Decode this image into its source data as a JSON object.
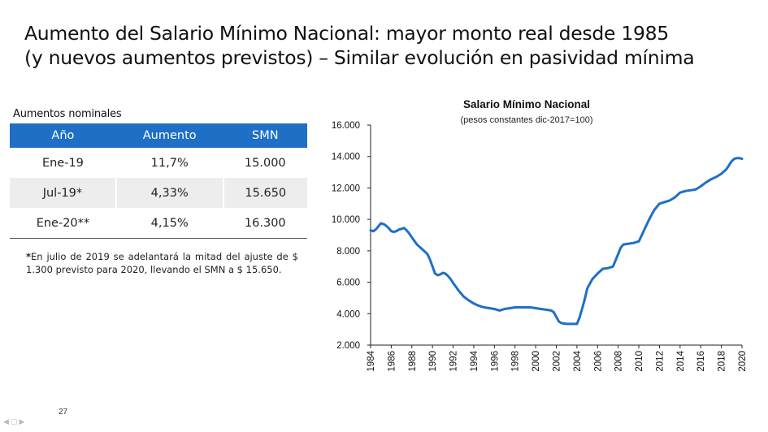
{
  "slide": {
    "title_line1": "Aumento del Salario Mínimo Nacional: mayor monto real desde 1985",
    "title_line2": "(y nuevos aumentos previstos) – Similar evolución en pasividad mínima",
    "page_number": "27"
  },
  "table": {
    "caption": "Aumentos nominales",
    "headers": [
      "Año",
      "Aumento",
      "SMN"
    ],
    "rows": [
      [
        "Ene-19",
        "11,7%",
        "15.000"
      ],
      [
        "Jul-19*",
        "4,33%",
        "15.650"
      ],
      [
        "Ene-20**",
        "4,15%",
        "16.300"
      ]
    ],
    "header_color": "#1f6fc6"
  },
  "footnote": {
    "marker": "*",
    "text": "En julio de 2019 se adelantará la mitad del ajuste de $ 1.300 previsto para 2020, llevando el SMN a $ 15.650."
  },
  "chart_data": {
    "type": "line",
    "title": "Salario Mínimo Nacional",
    "subtitle": "(pesos constantes dic-2017=100)",
    "xlabel": "",
    "ylabel": "",
    "xlim": [
      1984,
      2020
    ],
    "ylim": [
      2000,
      16000
    ],
    "y_ticks": [
      2000,
      4000,
      6000,
      8000,
      10000,
      12000,
      14000,
      16000
    ],
    "y_tick_labels": [
      "2.000",
      "4.000",
      "6.000",
      "8.000",
      "10.000",
      "12.000",
      "14.000",
      "16.000"
    ],
    "x_ticks": [
      1984,
      1986,
      1988,
      1990,
      1992,
      1994,
      1996,
      1998,
      2000,
      2002,
      2004,
      2006,
      2008,
      2010,
      2012,
      2014,
      2016,
      2018,
      2020
    ],
    "x_tick_labels": [
      "1984",
      "1986",
      "1988",
      "1990",
      "1992",
      "1994",
      "1996",
      "1998",
      "2000",
      "2002",
      "2004",
      "2006",
      "2008",
      "2010",
      "2012",
      "2014",
      "2016",
      "2018",
      "2020"
    ],
    "grid": false,
    "line_color": "#1f6fc6",
    "series": [
      {
        "x": [
          1984.0,
          1984.25,
          1984.5,
          1984.75,
          1985.0,
          1985.25,
          1985.5,
          1985.75,
          1986.0,
          1986.25,
          1986.5,
          1986.75,
          1987.0,
          1987.25,
          1987.5,
          1987.75,
          1988.0,
          1988.5,
          1989.0,
          1989.5,
          1989.75,
          1990.0,
          1990.25,
          1990.5,
          1990.75,
          1991.0,
          1991.25,
          1991.5,
          1991.75,
          1992.0,
          1992.5,
          1993.0,
          1993.5,
          1994.0,
          1994.5,
          1995.0,
          1995.5,
          1996.0,
          1996.5,
          1997.0,
          1997.5,
          1998.0,
          1998.5,
          1999.0,
          1999.5,
          2000.0,
          2000.5,
          2001.0,
          2001.5,
          2001.75,
          2002.0,
          2002.25,
          2002.5,
          2003.0,
          2003.5,
          2003.75,
          2004.0,
          2004.25,
          2004.5,
          2004.75,
          2005.0,
          2005.5,
          2006.0,
          2006.5,
          2007.0,
          2007.5,
          2008.0,
          2008.25,
          2008.5,
          2009.0,
          2009.5,
          2010.0,
          2010.5,
          2011.0,
          2011.5,
          2012.0,
          2012.5,
          2013.0,
          2013.5,
          2014.0,
          2014.5,
          2015.0,
          2015.5,
          2016.0,
          2016.5,
          2017.0,
          2017.5,
          2018.0,
          2018.5,
          2019.0,
          2019.25,
          2019.5,
          2019.75,
          2020.0
        ],
        "y": [
          9300,
          9250,
          9350,
          9550,
          9750,
          9700,
          9600,
          9450,
          9250,
          9200,
          9250,
          9350,
          9400,
          9450,
          9300,
          9100,
          8850,
          8400,
          8100,
          7800,
          7450,
          7000,
          6550,
          6450,
          6500,
          6600,
          6550,
          6400,
          6200,
          5950,
          5500,
          5100,
          4850,
          4650,
          4500,
          4400,
          4350,
          4300,
          4200,
          4300,
          4350,
          4400,
          4400,
          4400,
          4400,
          4350,
          4300,
          4250,
          4200,
          4100,
          3800,
          3500,
          3400,
          3350,
          3350,
          3350,
          3350,
          3750,
          4300,
          4900,
          5600,
          6200,
          6550,
          6850,
          6900,
          7000,
          7800,
          8200,
          8400,
          8450,
          8500,
          8600,
          9300,
          10000,
          10600,
          11000,
          11100,
          11200,
          11400,
          11700,
          11800,
          11850,
          11900,
          12100,
          12350,
          12550,
          12700,
          12900,
          13200,
          13700,
          13850,
          13900,
          13900,
          13850
        ]
      }
    ]
  }
}
